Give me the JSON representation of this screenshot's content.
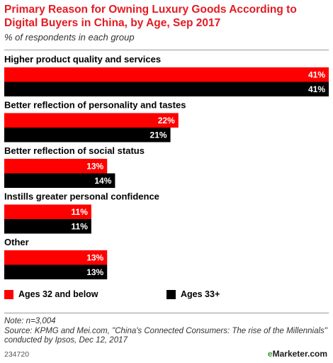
{
  "header": {
    "title": "Primary Reason for Owning Luxury Goods According to Digital Buyers in China, by Age, Sep 2017",
    "subtitle": "% of respondents in each group"
  },
  "chart_data": {
    "type": "bar",
    "orientation": "horizontal",
    "title": "Primary Reason for Owning Luxury Goods According to Digital Buyers in China, by Age, Sep 2017",
    "subtitle": "% of respondents in each group",
    "categories": [
      "Higher product quality and services",
      "Better reflection of personality and tastes",
      "Better reflection of social status",
      "Instills greater personal confidence",
      "Other"
    ],
    "series": [
      {
        "name": "Ages 32 and below",
        "color": "#ff0000",
        "values": [
          41,
          22,
          13,
          11,
          13
        ]
      },
      {
        "name": "Ages 33+",
        "color": "#000000",
        "values": [
          41,
          21,
          14,
          11,
          13
        ]
      }
    ],
    "value_suffix": "%",
    "xlim": [
      0,
      41
    ],
    "grid": false,
    "legend": "bottom-left"
  },
  "legend": {
    "items": [
      {
        "label": "Ages 32 and below",
        "color": "#ff0000"
      },
      {
        "label": "Ages 33+",
        "color": "#000000"
      }
    ]
  },
  "footer": {
    "note": "Note: n=3,004",
    "source": "Source: KPMG and Mei.com, \"China's Connected Consumers: The rise of the Millennials\" conducted by Ipsos, Dec 12, 2017",
    "chart_id": "234720",
    "brand_prefix": "e",
    "brand_name": "Marketer",
    "brand_suffix": ".com"
  }
}
